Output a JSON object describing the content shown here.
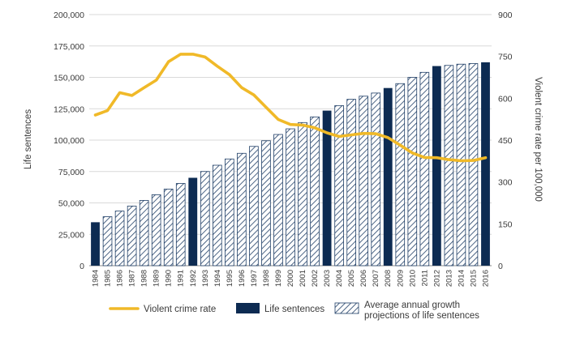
{
  "chart_data": {
    "type": "bar",
    "title": "",
    "categories": [
      "1984",
      "1985",
      "1986",
      "1987",
      "1988",
      "1989",
      "1990",
      "1991",
      "1992",
      "1993",
      "1994",
      "1995",
      "1996",
      "1997",
      "1998",
      "1999",
      "2000",
      "2001",
      "2002",
      "2003",
      "2004",
      "2005",
      "2006",
      "2007",
      "2008",
      "2009",
      "2010",
      "2011",
      "2012",
      "2013",
      "2014",
      "2015",
      "2016"
    ],
    "series": [
      {
        "name": "Life sentences",
        "kind": "bar",
        "values": [
          34600,
          39000,
          43500,
          47500,
          52000,
          56500,
          61000,
          65500,
          70000,
          75000,
          80000,
          85000,
          89500,
          95000,
          99500,
          104500,
          109000,
          114000,
          118500,
          123500,
          127500,
          132500,
          135000,
          137500,
          141500,
          145000,
          150000,
          154000,
          159000,
          159500,
          160500,
          161000,
          162000
        ],
        "projected": [
          false,
          true,
          true,
          true,
          true,
          true,
          true,
          true,
          false,
          true,
          true,
          true,
          true,
          true,
          true,
          true,
          true,
          true,
          true,
          false,
          true,
          true,
          true,
          true,
          false,
          true,
          true,
          true,
          false,
          true,
          true,
          true,
          false
        ],
        "solid_color": "#0d2b52",
        "hatch_color": "#1f3e66"
      },
      {
        "name": "Violent crime rate",
        "kind": "line",
        "axis": "right",
        "values": [
          540,
          556,
          620,
          610,
          638,
          665,
          731,
          758,
          758,
          748,
          715,
          685,
          638,
          612,
          568,
          524,
          506,
          504,
          494,
          476,
          463,
          469,
          474,
          473,
          459,
          432,
          404,
          388,
          387,
          380,
          376,
          377,
          387
        ],
        "color": "#f0b928"
      }
    ],
    "y_left": {
      "label": "Life sentences",
      "ylim": [
        0,
        200000
      ],
      "ticks": [
        "0",
        "25,000",
        "50,000",
        "75,000",
        "100,000",
        "125,000",
        "150,000",
        "175,000",
        "200,000"
      ]
    },
    "y_right": {
      "label": "Violent crime rate per 100,000",
      "ylim": [
        0,
        900
      ],
      "ticks": [
        "0",
        "150",
        "300",
        "450",
        "600",
        "750",
        "900"
      ]
    },
    "grid": true,
    "legend": {
      "placement": "bottom",
      "items": [
        {
          "key": "line",
          "lines": [
            "Violent crime rate"
          ]
        },
        {
          "key": "solid",
          "lines": [
            "Life sentences"
          ]
        },
        {
          "key": "hatch",
          "lines": [
            "Average annual growth",
            "projections of life sentences"
          ]
        }
      ]
    }
  }
}
